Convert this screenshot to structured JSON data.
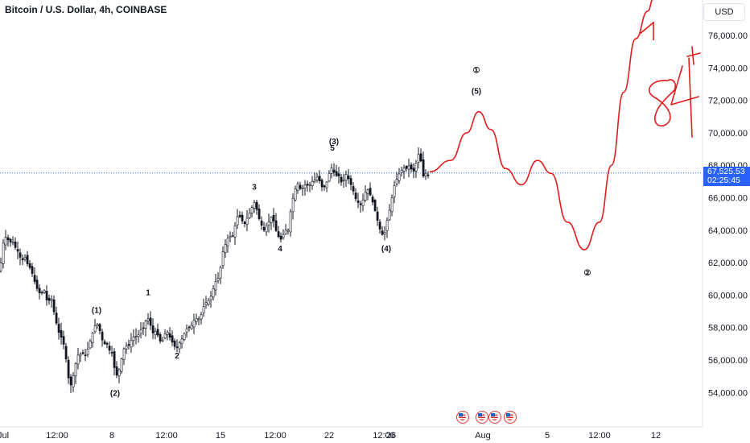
{
  "title": "Bitcoin / U.S. Dollar, 4h, COINBASE",
  "currency": "USD",
  "price_label": {
    "price": "67,525.53",
    "countdown": "02:25:45"
  },
  "colors": {
    "up": "#131722",
    "down": "#131722",
    "forecast": "#e31b1b",
    "price_line": "#2962ff",
    "axis_border": "#e0e3eb"
  },
  "event_icons": [
    "us-flag-icon",
    "us-flag-icon",
    "us-flag-icon",
    "us-flag-icon"
  ],
  "chart_data": {
    "type": "candlestick",
    "y_ticks": [
      "76,000.00",
      "74,000.00",
      "72,000.00",
      "70,000.00",
      "68,000.00",
      "66,000.00",
      "64,000.00",
      "62,000.00",
      "60,000.00",
      "58,000.00",
      "56,000.00",
      "54,000.00"
    ],
    "ylim": [
      52000,
      79000
    ],
    "x_ticks": [
      "Jul",
      "12:00",
      "8",
      "12:00",
      "15",
      "12:00",
      "22",
      "12:00",
      "26",
      "Aug",
      "5",
      "12:00",
      "12"
    ],
    "last_price": 67525.53,
    "close_path": [
      [
        0,
        61500
      ],
      [
        3,
        63000
      ],
      [
        6,
        63600
      ],
      [
        9,
        63500
      ],
      [
        12,
        63200
      ],
      [
        15,
        63400
      ],
      [
        18,
        63000
      ],
      [
        21,
        62800
      ],
      [
        24,
        62500
      ],
      [
        27,
        62000
      ],
      [
        30,
        62500
      ],
      [
        33,
        62000
      ],
      [
        36,
        61800
      ],
      [
        39,
        61500
      ],
      [
        42,
        61000
      ],
      [
        45,
        60500
      ],
      [
        48,
        60200
      ],
      [
        51,
        60000
      ],
      [
        54,
        60500
      ],
      [
        57,
        59800
      ],
      [
        60,
        59500
      ],
      [
        63,
        60000
      ],
      [
        66,
        59200
      ],
      [
        69,
        58500
      ],
      [
        72,
        57800
      ],
      [
        75,
        57500
      ],
      [
        78,
        57200
      ],
      [
        81,
        56500
      ],
      [
        84,
        55200
      ],
      [
        87,
        54300
      ],
      [
        90,
        54800
      ],
      [
        93,
        55500
      ],
      [
        96,
        56300
      ],
      [
        99,
        56300
      ],
      [
        102,
        56500
      ],
      [
        105,
        56200
      ],
      [
        108,
        56500
      ],
      [
        111,
        57000
      ],
      [
        114,
        57500
      ],
      [
        117,
        58000
      ],
      [
        120,
        58300
      ],
      [
        123,
        58000
      ],
      [
        126,
        57400
      ],
      [
        129,
        56900
      ],
      [
        132,
        57200
      ],
      [
        135,
        56500
      ],
      [
        138,
        56800
      ],
      [
        141,
        55800
      ],
      [
        144,
        55000
      ],
      [
        147,
        55200
      ],
      [
        150,
        55800
      ],
      [
        153,
        56600
      ],
      [
        156,
        56900
      ],
      [
        159,
        56800
      ],
      [
        162,
        57100
      ],
      [
        165,
        57400
      ],
      [
        168,
        57500
      ],
      [
        171,
        57400
      ],
      [
        174,
        57900
      ],
      [
        177,
        57800
      ],
      [
        180,
        58300
      ],
      [
        183,
        58600
      ],
      [
        186,
        58400
      ],
      [
        189,
        57600
      ],
      [
        192,
        57800
      ],
      [
        195,
        57700
      ],
      [
        198,
        57200
      ],
      [
        201,
        57100
      ],
      [
        204,
        57500
      ],
      [
        207,
        57800
      ],
      [
        210,
        57500
      ],
      [
        213,
        57200
      ],
      [
        216,
        56900
      ],
      [
        219,
        56700
      ],
      [
        222,
        57000
      ],
      [
        225,
        57200
      ],
      [
        228,
        57500
      ],
      [
        231,
        57900
      ],
      [
        234,
        58000
      ],
      [
        237,
        58000
      ],
      [
        240,
        58400
      ],
      [
        243,
        58600
      ],
      [
        246,
        58500
      ],
      [
        249,
        58600
      ],
      [
        252,
        59200
      ],
      [
        255,
        59500
      ],
      [
        258,
        59600
      ],
      [
        261,
        59800
      ],
      [
        264,
        60200
      ],
      [
        267,
        60800
      ],
      [
        270,
        60900
      ],
      [
        273,
        61300
      ],
      [
        276,
        62500
      ],
      [
        279,
        63000
      ],
      [
        282,
        63400
      ],
      [
        285,
        63700
      ],
      [
        288,
        63500
      ],
      [
        291,
        64000
      ],
      [
        294,
        64800
      ],
      [
        297,
        64900
      ],
      [
        300,
        64700
      ],
      [
        303,
        64300
      ],
      [
        306,
        64600
      ],
      [
        309,
        65000
      ],
      [
        312,
        65200
      ],
      [
        315,
        65800
      ],
      [
        318,
        65500
      ],
      [
        321,
        64800
      ],
      [
        324,
        64500
      ],
      [
        327,
        63900
      ],
      [
        330,
        64200
      ],
      [
        333,
        64400
      ],
      [
        336,
        64800
      ],
      [
        339,
        64800
      ],
      [
        342,
        64100
      ],
      [
        345,
        63700
      ],
      [
        348,
        63400
      ],
      [
        351,
        63500
      ],
      [
        354,
        64200
      ],
      [
        357,
        63600
      ],
      [
        360,
        64800
      ],
      [
        363,
        65800
      ],
      [
        366,
        66300
      ],
      [
        369,
        67000
      ],
      [
        372,
        66600
      ],
      [
        375,
        66500
      ],
      [
        378,
        66800
      ],
      [
        381,
        66800
      ],
      [
        384,
        66700
      ],
      [
        387,
        67000
      ],
      [
        390,
        67000
      ],
      [
        393,
        67300
      ],
      [
        396,
        67200
      ],
      [
        399,
        66700
      ],
      [
        402,
        66600
      ],
      [
        405,
        66800
      ],
      [
        408,
        67300
      ],
      [
        411,
        67900
      ],
      [
        414,
        67700
      ],
      [
        417,
        67300
      ],
      [
        420,
        67500
      ],
      [
        423,
        67000
      ],
      [
        426,
        66900
      ],
      [
        429,
        67500
      ],
      [
        432,
        67300
      ],
      [
        435,
        66900
      ],
      [
        438,
        66600
      ],
      [
        441,
        66000
      ],
      [
        444,
        65800
      ],
      [
        447,
        65500
      ],
      [
        450,
        65700
      ],
      [
        453,
        66200
      ],
      [
        456,
        66600
      ],
      [
        459,
        66300
      ],
      [
        462,
        65900
      ],
      [
        465,
        65400
      ],
      [
        468,
        64800
      ],
      [
        471,
        64200
      ],
      [
        474,
        63800
      ],
      [
        477,
        63600
      ],
      [
        480,
        64400
      ],
      [
        483,
        65000
      ],
      [
        486,
        65700
      ],
      [
        489,
        66600
      ],
      [
        492,
        67000
      ],
      [
        495,
        67400
      ],
      [
        498,
        67600
      ],
      [
        501,
        67900
      ],
      [
        504,
        67700
      ],
      [
        507,
        68000
      ],
      [
        510,
        67900
      ],
      [
        513,
        67500
      ],
      [
        516,
        67900
      ],
      [
        519,
        68600
      ],
      [
        522,
        68800
      ],
      [
        525,
        67200
      ],
      [
        528,
        67600
      ],
      [
        531,
        67300
      ],
      [
        534,
        67500
      ]
    ],
    "forecast_path": [
      [
        534,
        67600
      ],
      [
        560,
        68300
      ],
      [
        580,
        70000
      ],
      [
        595,
        71300
      ],
      [
        610,
        70200
      ],
      [
        628,
        67800
      ],
      [
        648,
        66800
      ],
      [
        668,
        68300
      ],
      [
        685,
        67500
      ],
      [
        705,
        64500
      ],
      [
        726,
        62800
      ],
      [
        745,
        64500
      ],
      [
        760,
        68000
      ],
      [
        775,
        72500
      ],
      [
        790,
        75800
      ],
      [
        805,
        77500
      ],
      [
        812,
        78300
      ]
    ],
    "wave_labels": [
      {
        "text": "(1)",
        "x": 120,
        "y": 58900
      },
      {
        "text": "(2)",
        "x": 143,
        "y": 53800
      },
      {
        "text": "1",
        "x": 184,
        "y": 60000
      },
      {
        "text": "2",
        "x": 220,
        "y": 56100
      },
      {
        "text": "3",
        "x": 316,
        "y": 66500
      },
      {
        "text": "4",
        "x": 348,
        "y": 62700
      },
      {
        "text": "(3)",
        "x": 415,
        "y": 69300
      },
      {
        "text": "5",
        "x": 413,
        "y": 68900
      },
      {
        "text": "(4)",
        "x": 480,
        "y": 62700
      },
      {
        "text": "(5)",
        "x": 592,
        "y": 72400
      },
      {
        "text": "①",
        "x": 592,
        "y": 73700
      },
      {
        "text": "②",
        "x": 730,
        "y": 61200
      }
    ],
    "annotation": "84k"
  }
}
